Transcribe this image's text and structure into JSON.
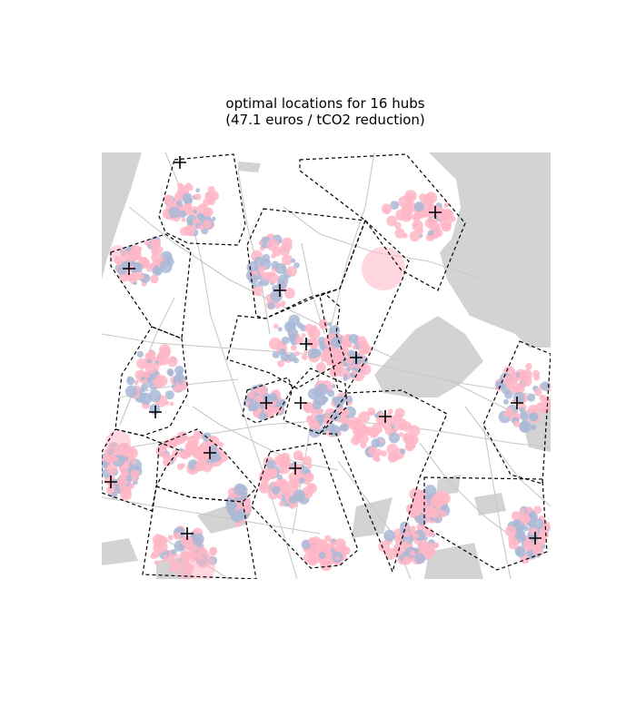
{
  "figure": {
    "title_line1": "optimal locations for 16 hubs",
    "title_line2": " (47.1 euros / tCO2 reduction)"
  },
  "colors": {
    "water": "#d3d3d3",
    "roads": "#c8c8c8",
    "demand_pink": "#ffb6c6",
    "demand_blue": "#a9b9d6",
    "boundary": "#000000",
    "hub_marker": "#000000"
  },
  "map": {
    "num_hubs": 16,
    "hub_marker_icon": "plus-marker",
    "boundary_style": "dashed"
  }
}
